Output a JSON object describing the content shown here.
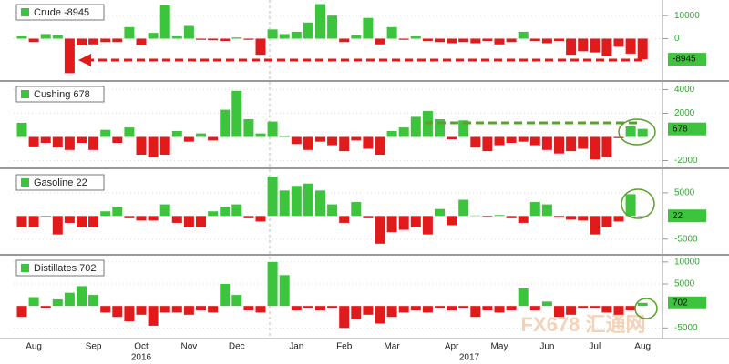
{
  "chart_data": [
    {
      "type": "bar",
      "series": [
        {
          "name": "Crude -8945",
          "color": "#3cc43c",
          "negative_color": "#e11b1b",
          "values": [
            1000,
            -1500,
            2000,
            1500,
            -15000,
            -3000,
            -2500,
            -1500,
            -1500,
            5000,
            -3000,
            2500,
            14500,
            1000,
            5500,
            -500,
            -700,
            -1000,
            500,
            -500,
            -7000,
            4000,
            2000,
            3000,
            7000,
            15000,
            10000,
            -1500,
            1500,
            9000,
            -2500,
            5000,
            -500,
            1000,
            -1000,
            -1500,
            -2000,
            -1500,
            -2000,
            -1000,
            -2500,
            -1500,
            3000,
            -1000,
            -2000,
            -1000,
            -7000,
            -5500,
            -6000,
            -7500,
            -3500,
            -6500,
            -8945
          ]
        }
      ],
      "ylim": [
        -18000,
        16000
      ],
      "yticks": [
        0,
        10000
      ],
      "grid": true
    },
    {
      "type": "bar",
      "series": [
        {
          "name": "Cushing 678",
          "color": "#3cc43c",
          "negative_color": "#e11b1b",
          "values": [
            1200,
            -800,
            -500,
            -900,
            -1100,
            -500,
            -1100,
            600,
            -500,
            800,
            -1500,
            -1700,
            -1500,
            500,
            -400,
            300,
            -300,
            2300,
            3900,
            1500,
            300,
            1300,
            100,
            -600,
            -1100,
            -400,
            -700,
            -1200,
            -300,
            -1000,
            -1500,
            500,
            800,
            1700,
            2200,
            1500,
            -200,
            1400,
            -900,
            -1200,
            -700,
            -500,
            -400,
            -700,
            -1100,
            -1400,
            -1200,
            -1000,
            -1900,
            -1700,
            -100,
            900,
            678
          ]
        }
      ],
      "ylim": [
        -2500,
        4500
      ],
      "yticks": [
        -2000,
        2000,
        4000
      ],
      "grid": true
    },
    {
      "type": "bar",
      "series": [
        {
          "name": "Gasoline 22",
          "color": "#3cc43c",
          "negative_color": "#e11b1b",
          "values": [
            -2500,
            -2500,
            -100,
            -4000,
            -1500,
            -2500,
            -2500,
            1000,
            2000,
            -500,
            -1000,
            -1000,
            2500,
            -1500,
            -2500,
            -2500,
            1000,
            2000,
            2500,
            -500,
            -1200,
            8500,
            5500,
            6500,
            7000,
            5500,
            2500,
            -1500,
            3000,
            -500,
            -6000,
            -3500,
            -3000,
            -2500,
            -4000,
            1500,
            -2000,
            3500,
            100,
            -200,
            200,
            -500,
            -1500,
            3000,
            2500,
            -300,
            -800,
            -1000,
            -4000,
            -2500,
            -1200,
            4700,
            22
          ]
        }
      ],
      "ylim": [
        -8000,
        9500
      ],
      "yticks": [
        -5000,
        5000
      ],
      "grid": true
    },
    {
      "type": "bar",
      "series": [
        {
          "name": "Distillates 702",
          "color": "#3cc43c",
          "negative_color": "#e11b1b",
          "values": [
            -2500,
            2000,
            -500,
            1500,
            3000,
            4500,
            2500,
            -1500,
            -2500,
            -3500,
            -2000,
            -4500,
            -1500,
            -1500,
            -2000,
            -1000,
            -1500,
            5000,
            2500,
            -1000,
            -1500,
            10000,
            7000,
            -1000,
            -500,
            -1000,
            -500,
            -5000,
            -3000,
            -2000,
            -4000,
            -2500,
            -1500,
            -1000,
            -1500,
            -500,
            -1000,
            -500,
            -2500,
            -1000,
            -1500,
            -1000,
            4000,
            -1000,
            1000,
            -2500,
            -2000,
            -500,
            -500,
            -1500,
            -2000,
            -1000,
            702
          ]
        }
      ],
      "ylim": [
        -7000,
        11000
      ],
      "yticks": [
        -5000,
        5000,
        10000
      ],
      "grid": true,
      "categories": [
        null,
        "Aug",
        null,
        null,
        null,
        null,
        "Sep",
        null,
        null,
        null,
        "Oct",
        null,
        null,
        null,
        "Nov",
        null,
        null,
        null,
        "Dec",
        null,
        null,
        null,
        null,
        "Jan",
        null,
        null,
        null,
        "Feb",
        null,
        null,
        null,
        "Mar",
        null,
        null,
        null,
        null,
        "Apr",
        null,
        null,
        null,
        "May",
        null,
        null,
        null,
        "Jun",
        null,
        null,
        null,
        "Jul",
        null,
        null,
        null,
        "Aug"
      ],
      "years": [
        "2016",
        "2017"
      ]
    }
  ],
  "watermark": "FX678 汇通网"
}
